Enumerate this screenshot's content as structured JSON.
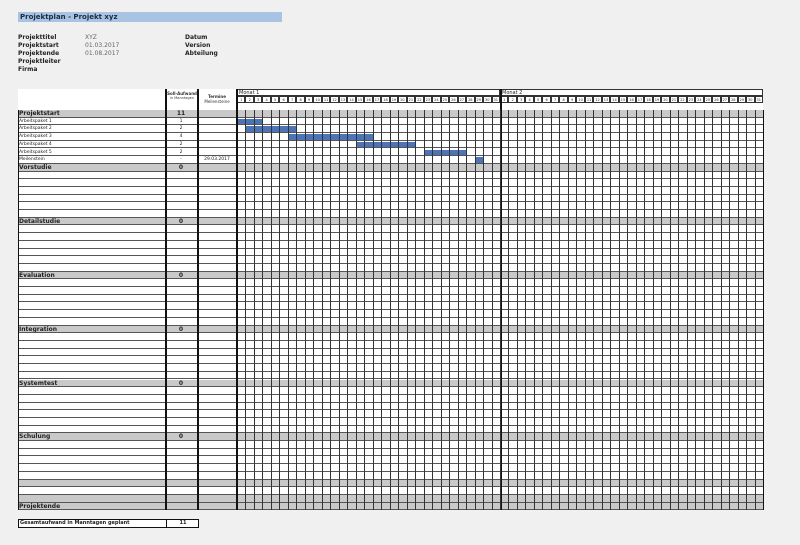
{
  "title": "Projektplan - Projekt xyz",
  "meta_left": [
    {
      "label": "Projekttitel",
      "value": "XYZ"
    },
    {
      "label": "Projektstart",
      "value": "01.03.2017"
    },
    {
      "label": "Projektende",
      "value": "01.08.2017"
    },
    {
      "label": "Projektleiter",
      "value": ""
    },
    {
      "label": "Firma",
      "value": ""
    }
  ],
  "meta_right": [
    "Datum",
    "Version",
    "Abteilung"
  ],
  "headers": {
    "effort": "Soll-Aufwand",
    "effort_unit": "in Manntagen",
    "termine": "Termine",
    "termine_sub": "Meilensteine",
    "months": [
      "Monat 1",
      "Monat 2"
    ],
    "days_per_month": 31
  },
  "bar_color": "#4b73b5",
  "sections": [
    {
      "name": "Projektstart",
      "effort": "11",
      "rows": 6,
      "items": [
        {
          "name": "Arbeitspaket 1",
          "effort": "1",
          "termin": "",
          "start": 1,
          "end": 3
        },
        {
          "name": "Arbeitspaket 2",
          "effort": "2",
          "termin": "",
          "start": 2,
          "end": 7
        },
        {
          "name": "Arbeitspaket 3",
          "effort": "4",
          "termin": "",
          "start": 7,
          "end": 16
        },
        {
          "name": "Arbeitspaket 4",
          "effort": "2",
          "termin": "",
          "start": 15,
          "end": 21
        },
        {
          "name": "Arbeitspaket 5",
          "effort": "2",
          "termin": "",
          "start": 23,
          "end": 27
        },
        {
          "name": "Meilenstein",
          "effort": "-",
          "termin": "29.03.2017",
          "start": 29,
          "end": 29,
          "milestone": true
        }
      ]
    },
    {
      "name": "Vorstudie",
      "effort": "0",
      "rows": 6,
      "items": []
    },
    {
      "name": "Detailstudie",
      "effort": "0",
      "rows": 6,
      "items": []
    },
    {
      "name": "Evaluation",
      "effort": "0",
      "rows": 6,
      "items": []
    },
    {
      "name": "Integration",
      "effort": "0",
      "rows": 6,
      "items": []
    },
    {
      "name": "Systemtest",
      "effort": "0",
      "rows": 6,
      "items": []
    },
    {
      "name": "Schulung",
      "effort": "0",
      "rows": 8,
      "items": []
    },
    {
      "name": "Projektende",
      "effort": "",
      "rows": 0,
      "items": []
    }
  ],
  "total": {
    "label": "Gesamtaufwand in Manntagen geplant",
    "value": "11"
  }
}
